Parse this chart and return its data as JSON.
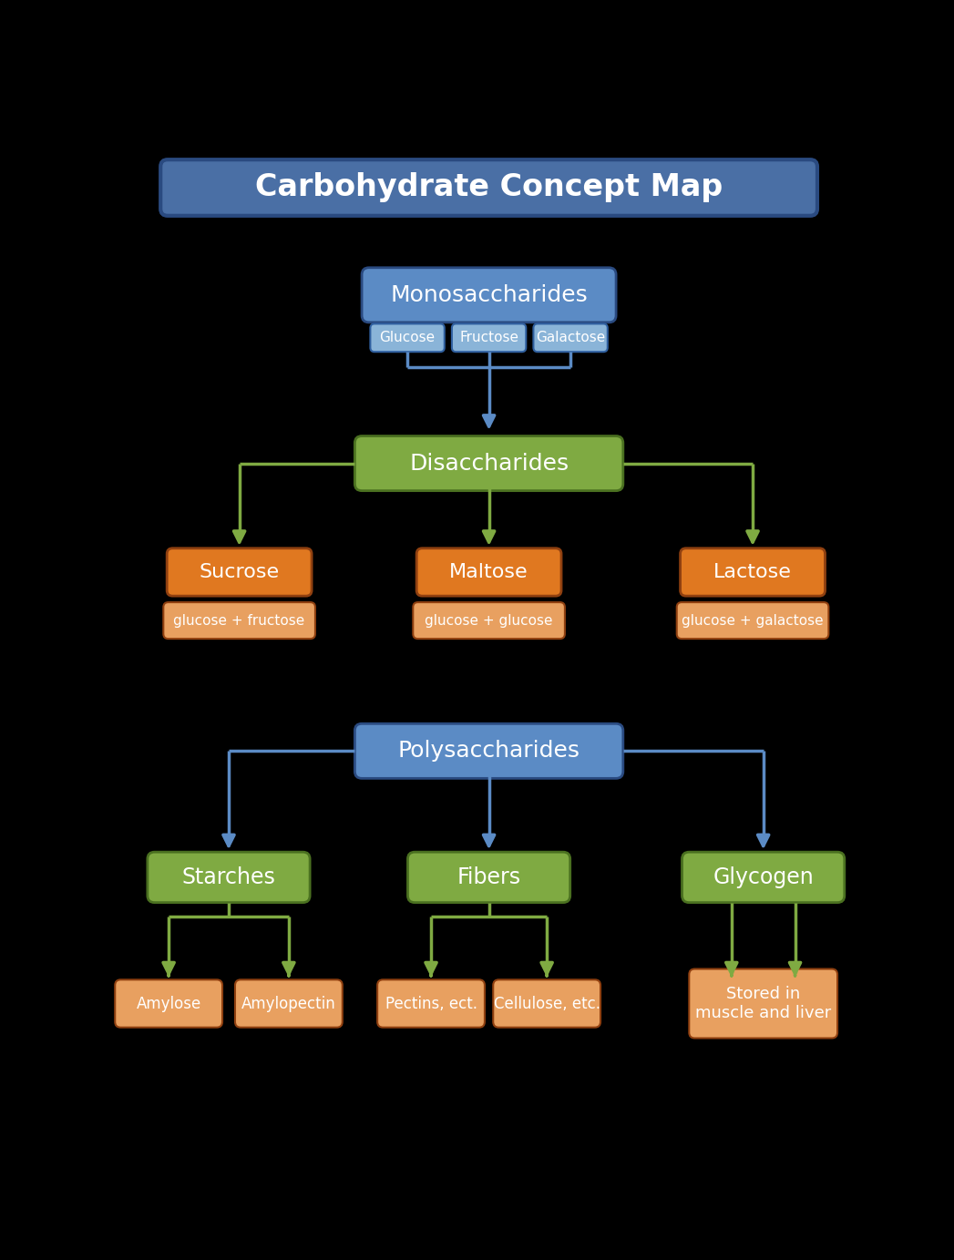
{
  "title": "Carbohydrate Concept Map",
  "bg_color": "#000000",
  "title_box_color": "#4a6fa5",
  "title_text_color": "#ffffff",
  "mono_box_color": "#5b8bc5",
  "mono_text": "Monosaccharides",
  "mono_sub_boxes": [
    "Glucose",
    "Fructose",
    "Galactose"
  ],
  "mono_sub_color": "#8ab4d8",
  "di_box_color": "#7faa42",
  "di_text": "Disaccharides",
  "di_subs": [
    "Sucrose",
    "Maltose",
    "Lactose"
  ],
  "di_sub_descs": [
    "glucose + fructose",
    "glucose + glucose",
    "glucose + galactose"
  ],
  "orange_dark": "#e07820",
  "orange_light": "#e8a060",
  "poly_box_color": "#5b8bc5",
  "poly_text": "Polysaccharides",
  "poly_subs": [
    "Starches",
    "Fibers",
    "Glycogen"
  ],
  "poly_sub_color": "#7faa42",
  "poly_leaves": [
    [
      "Amylose",
      "Amylopectin"
    ],
    [
      "Pectins, ect.",
      "Cellulose, etc."
    ],
    [
      "Stored in\nmuscle and liver"
    ]
  ],
  "green_arrow": "#7faa42",
  "blue_arrow": "#5b8bc5",
  "fig_w": 10.47,
  "fig_h": 13.83
}
